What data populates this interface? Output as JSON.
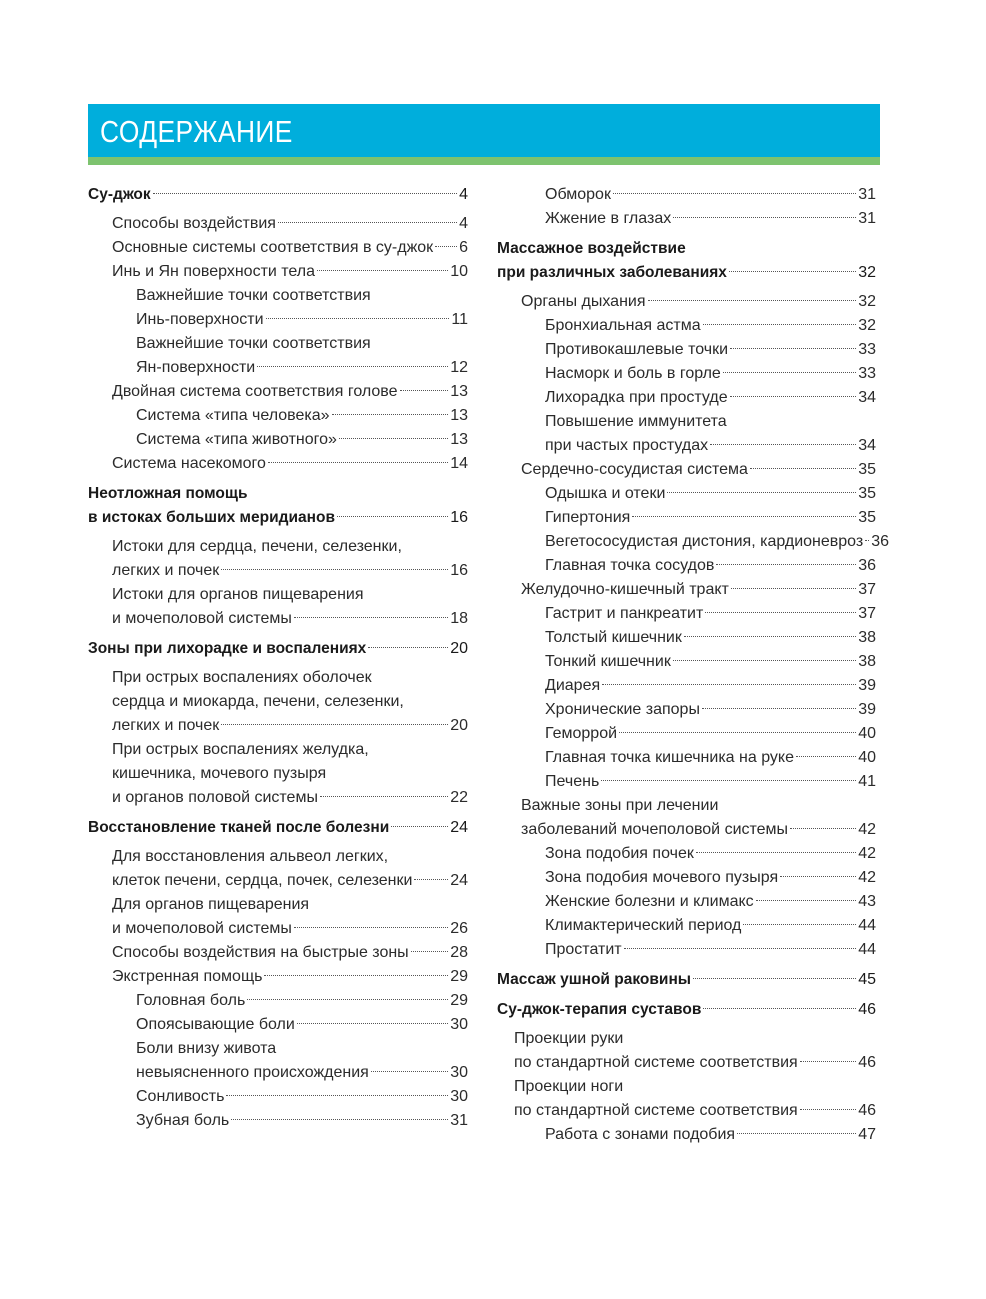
{
  "header": {
    "title": "СОДЕРЖАНИЕ",
    "band_color": "#00aedc",
    "stripe_color": "#7dc36f"
  },
  "columns": [
    {
      "groups": [
        {
          "entries": [
            {
              "text": "Су-джок",
              "page": "4",
              "level": 0,
              "bold": true
            },
            {
              "text": "Способы воздействия",
              "page": "4",
              "level": 1
            },
            {
              "text": "Основные системы соответствия в су-джок",
              "page": "6",
              "level": 1
            },
            {
              "text": "Инь и Ян поверхности тела",
              "page": "10",
              "level": 1
            },
            {
              "text": "Важнейшие точки соответствия",
              "level": 2
            },
            {
              "text": "Инь-поверхности",
              "page": "11",
              "level": 2
            },
            {
              "text": "Важнейшие точки соответствия",
              "level": 2
            },
            {
              "text": "Ян-поверхности",
              "page": "12",
              "level": 2
            },
            {
              "text": "Двойная система соответствия голове",
              "page": "13",
              "level": 1
            },
            {
              "text": "Система «типа человека»",
              "page": "13",
              "level": 2
            },
            {
              "text": "Система «типа животного»",
              "page": "13",
              "level": 2
            },
            {
              "text": "Система насекомого",
              "page": "14",
              "level": 1
            }
          ]
        },
        {
          "entries": [
            {
              "text": "Неотложная помощь",
              "level": 0,
              "bold": true
            },
            {
              "text": "в истоках больших меридианов",
              "page": "16",
              "level": 0,
              "bold": true
            },
            {
              "text": "Истоки для сердца, печени, селезенки,",
              "level": 1
            },
            {
              "text": "легких и почек",
              "page": "16",
              "level": 1
            },
            {
              "text": "Истоки для органов пищеварения",
              "level": 1
            },
            {
              "text": "и мочеполовой системы",
              "page": "18",
              "level": 1
            }
          ]
        },
        {
          "entries": [
            {
              "text": "Зоны при лихорадке и воспалениях",
              "page": "20",
              "level": 0,
              "bold": true
            },
            {
              "text": "При острых воспалениях оболочек",
              "level": 1
            },
            {
              "text": "сердца и миокарда, печени, селезенки,",
              "level": 1
            },
            {
              "text": "легких и почек",
              "page": "20",
              "level": 1
            },
            {
              "text": "При острых воспалениях желудка,",
              "level": 1
            },
            {
              "text": "кишечника, мочевого пузыря",
              "level": 1
            },
            {
              "text": "и органов половой системы",
              "page": "22",
              "level": 1
            }
          ]
        },
        {
          "entries": [
            {
              "text": "Восстановление тканей после болезни",
              "page": "24",
              "level": 0,
              "bold": true
            },
            {
              "text": "Для восстановления альвеол легких,",
              "level": 1
            },
            {
              "text": "клеток печени, сердца, почек, селезенки",
              "page": "24",
              "level": 1
            },
            {
              "text": "Для органов пищеварения",
              "level": 1
            },
            {
              "text": "и мочеполовой системы",
              "page": "26",
              "level": 1
            },
            {
              "text": "Способы воздействия на быстрые зоны",
              "page": "28",
              "level": 1
            },
            {
              "text": "Экстренная помощь",
              "page": "29",
              "level": 1
            },
            {
              "text": "Головная боль",
              "page": "29",
              "level": 2
            },
            {
              "text": "Опоясывающие боли",
              "page": "30",
              "level": 2
            },
            {
              "text": "Боли внизу живота",
              "level": 2
            },
            {
              "text": "невыясненного происхождения",
              "page": "30",
              "level": 2
            },
            {
              "text": "Сонливость",
              "page": "30",
              "level": 2
            },
            {
              "text": "Зубная боль",
              "page": "31",
              "level": 2
            }
          ]
        }
      ]
    },
    {
      "groups": [
        {
          "entries": [
            {
              "text": "Обморок",
              "page": "31",
              "level": 2
            },
            {
              "text": "Жжение в глазах",
              "page": "31",
              "level": 2
            }
          ]
        },
        {
          "entries": [
            {
              "text": "Массажное воздействие",
              "level": 0,
              "bold": true
            },
            {
              "text": "при различных заболеваниях",
              "page": "32",
              "level": 0,
              "bold": true
            },
            {
              "text": "Органы дыхания",
              "page": "32",
              "level": 1
            },
            {
              "text": "Бронхиальная астма",
              "page": "32",
              "level": 2
            },
            {
              "text": "Противокашлевые точки",
              "page": "33",
              "level": 2
            },
            {
              "text": "Насморк и боль в горле",
              "page": "33",
              "level": 2
            },
            {
              "text": "Лихорадка при простуде",
              "page": "34",
              "level": 2
            },
            {
              "text": "Повышение иммунитета",
              "level": 2
            },
            {
              "text": "при частых простудах",
              "page": "34",
              "level": 2
            },
            {
              "text": "Сердечно-сосудистая система",
              "page": "35",
              "level": 1
            },
            {
              "text": "Одышка и отеки",
              "page": "35",
              "level": 2
            },
            {
              "text": "Гипертония",
              "page": "35",
              "level": 2
            },
            {
              "text": "Вегетососудистая дистония, кардионевроз",
              "page": "36",
              "level": 2
            },
            {
              "text": "Главная точка сосудов",
              "page": "36",
              "level": 2
            },
            {
              "text": "Желудочно-кишечный тракт",
              "page": "37",
              "level": 1
            },
            {
              "text": "Гастрит и панкреатит",
              "page": "37",
              "level": 2
            },
            {
              "text": "Толстый кишечник",
              "page": "38",
              "level": 2
            },
            {
              "text": "Тонкий кишечник",
              "page": "38",
              "level": 2
            },
            {
              "text": "Диарея",
              "page": "39",
              "level": 2
            },
            {
              "text": "Хронические запоры",
              "page": "39",
              "level": 2
            },
            {
              "text": "Геморрой",
              "page": "40",
              "level": 2
            },
            {
              "text": "Главная точка кишечника на руке",
              "page": "40",
              "level": 2
            },
            {
              "text": "Печень",
              "page": "41",
              "level": 2
            },
            {
              "text": "Важные зоны при лечении",
              "level": 1
            },
            {
              "text": "заболеваний мочеполовой системы",
              "page": "42",
              "level": 1
            },
            {
              "text": "Зона подобия почек",
              "page": "42",
              "level": 2
            },
            {
              "text": "Зона подобия мочевого пузыря",
              "page": "42",
              "level": 2
            },
            {
              "text": "Женские болезни и климакс",
              "page": "43",
              "level": 2
            },
            {
              "text": "Климактерический период",
              "page": "44",
              "level": 2
            },
            {
              "text": "Простатит",
              "page": "44",
              "level": 2
            }
          ]
        },
        {
          "entries": [
            {
              "text": "Массаж ушной раковины",
              "page": "45",
              "level": 0,
              "bold": true
            }
          ]
        },
        {
          "entries": [
            {
              "text": "Су-джок-терапия суставов",
              "page": "46",
              "level": 0,
              "bold": true
            },
            {
              "text": "Проекции руки",
              "level": "1b"
            },
            {
              "text": "по стандартной системе соответствия",
              "page": "46",
              "level": "1b"
            },
            {
              "text": "Проекции ноги",
              "level": "1b"
            },
            {
              "text": "по стандартной системе соответствия",
              "page": "46",
              "level": "1b"
            },
            {
              "text": "Работа с зонами подобия",
              "page": "47",
              "level": 2
            }
          ]
        }
      ]
    }
  ]
}
